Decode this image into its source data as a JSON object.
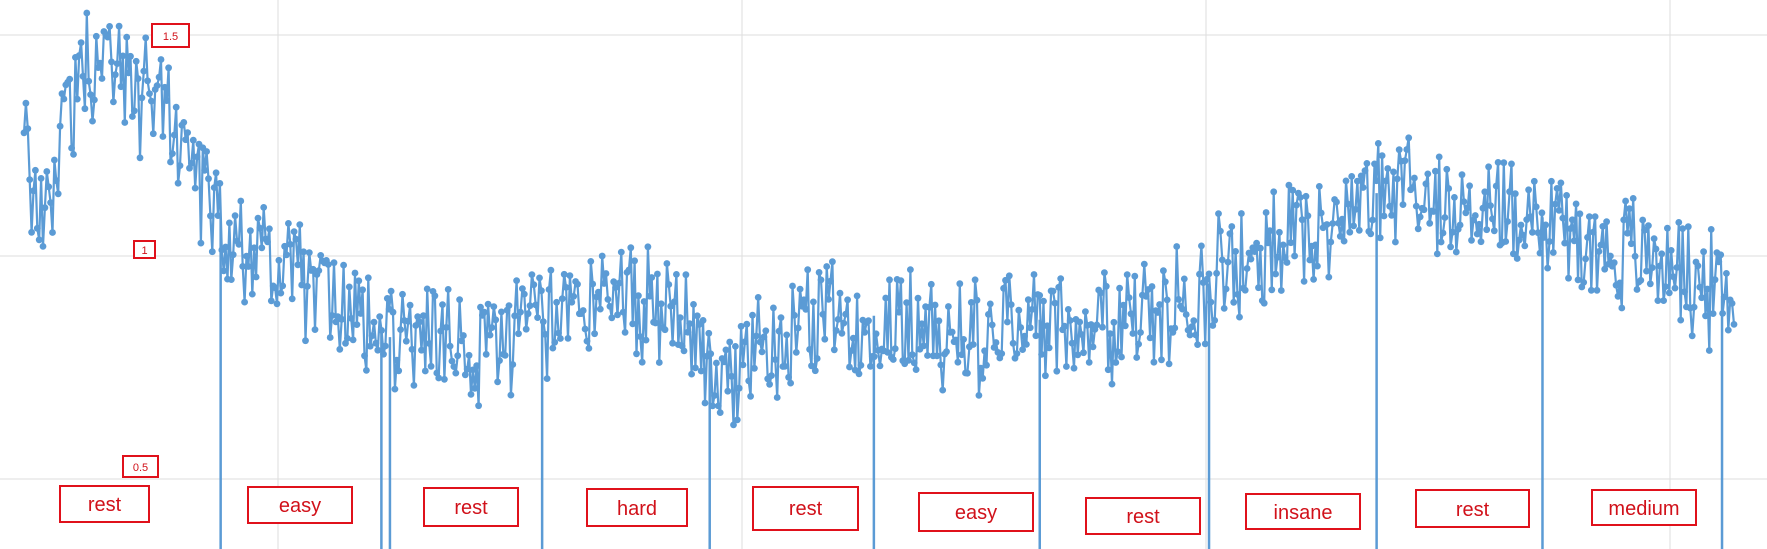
{
  "chart_data": {
    "type": "line",
    "title": "",
    "xlabel": "",
    "ylabel": "",
    "ylim": [
      0.5,
      1.5
    ],
    "y_ticks": [
      "1.5",
      "1",
      "0.5"
    ],
    "grid": true,
    "legend": "none",
    "color": "#5b9bd5",
    "annotation_color": "#e0111b",
    "segments": [
      "rest",
      "easy",
      "rest",
      "hard",
      "rest",
      "easy",
      "rest",
      "insane",
      "rest",
      "medium"
    ],
    "series": [
      {
        "values": [
          1.26,
          1.05,
          1.3,
          1.41,
          1.46,
          1.44,
          1.35,
          1.38,
          1.29,
          1.18,
          1.1,
          1.05,
          1.02,
          0.99,
          0.96,
          0.93,
          0.91,
          0.88,
          0.85,
          0.82,
          0.81,
          0.8,
          0.79,
          0.79,
          0.8,
          0.81,
          0.83,
          0.85,
          0.87,
          0.9,
          0.92,
          0.93,
          0.91,
          0.88,
          0.85,
          0.81,
          0.78,
          0.76,
          0.77,
          0.79,
          0.82,
          0.84,
          0.86,
          0.87,
          0.87,
          0.86,
          0.85,
          0.84,
          0.83,
          0.82,
          0.83,
          0.84,
          0.85,
          0.86,
          0.86,
          0.85,
          0.84,
          0.85,
          0.86,
          0.88,
          0.89,
          0.92,
          0.95,
          0.98,
          1.0,
          1.02,
          1.04,
          1.06,
          1.08,
          1.11,
          1.14,
          1.15,
          1.16,
          1.14,
          1.11,
          1.1,
          1.1,
          1.11,
          1.11,
          1.09,
          1.07,
          1.04,
          1.02,
          1.01,
          1.01,
          1.0,
          0.98,
          0.95,
          0.92,
          0.9
        ],
        "dips": [
          {
            "x": 0.115,
            "y": 0.5
          },
          {
            "x": 0.209,
            "y": 0.5
          },
          {
            "x": 0.214,
            "y": 0.5
          },
          {
            "x": 0.303,
            "y": 0.5
          },
          {
            "x": 0.401,
            "y": 0.5
          },
          {
            "x": 0.497,
            "y": 0.5
          },
          {
            "x": 0.594,
            "y": 0.5
          },
          {
            "x": 0.693,
            "y": 0.5
          },
          {
            "x": 0.791,
            "y": 0.5
          },
          {
            "x": 0.888,
            "y": 0.5
          },
          {
            "x": 0.993,
            "y": 0.5
          }
        ]
      }
    ]
  }
}
